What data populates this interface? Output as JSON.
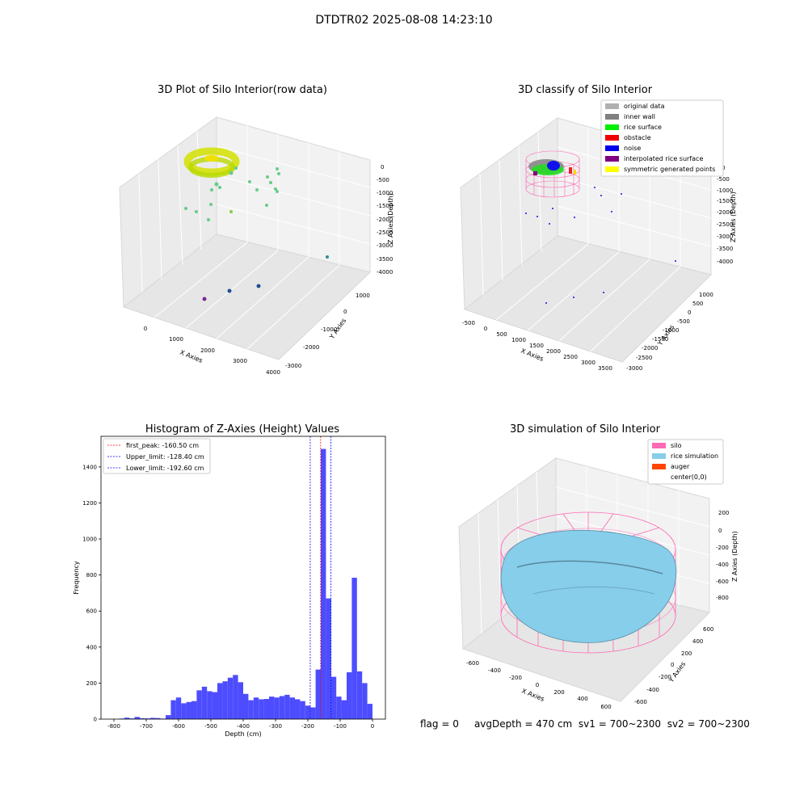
{
  "suptitle": "DTDTR02 2025-08-08 14:23:10",
  "panels": {
    "raw": {
      "title": "3D Plot of Silo Interior(row data)",
      "xlabel": "X Axies",
      "ylabel": "Y Axies",
      "zlabel": "Z Axies (Depth)",
      "xticks": [
        "0",
        "1000",
        "2000",
        "3000",
        "4000"
      ],
      "yticks": [
        "1000",
        "0",
        "-1000",
        "-2000",
        "-3000"
      ],
      "zticks": [
        "0",
        "-500",
        "-1000",
        "-1500",
        "-2000",
        "-2500",
        "-3000",
        "-3500",
        "-4000"
      ]
    },
    "classify": {
      "title": "3D classify of Silo Interior",
      "xlabel": "X Axies",
      "ylabel": "Y Axies",
      "zlabel": "Z Axies (Depth)",
      "xticks": [
        "-500",
        "0",
        "500",
        "1000",
        "1500",
        "2000",
        "2500",
        "3000",
        "3500"
      ],
      "yticks": [
        "1000",
        "500",
        "0",
        "-500",
        "-1000",
        "-1500",
        "-2000",
        "-2500",
        "-3000"
      ],
      "zticks": [
        "0",
        "-500",
        "-1000",
        "-1500",
        "-2000",
        "-2500",
        "-3000",
        "-3500",
        "-4000"
      ],
      "legend": [
        {
          "label": "original data",
          "color": "#b0b0b0"
        },
        {
          "label": "inner wall",
          "color": "#808080"
        },
        {
          "label": "rice surface",
          "color": "#00ee00"
        },
        {
          "label": "obstacle",
          "color": "#ee0000"
        },
        {
          "label": "noise",
          "color": "#0000ee"
        },
        {
          "label": "interpolated rice surface",
          "color": "#800080"
        },
        {
          "label": "symmetric generated points",
          "color": "#ffff00"
        }
      ]
    },
    "simulation": {
      "title": "3D simulation of Silo Interior",
      "xlabel": "X Axies",
      "ylabel": "Y Axies",
      "zlabel": "Z Axies (Depth)",
      "xticks": [
        "-600",
        "-400",
        "-200",
        "0",
        "200",
        "400",
        "600"
      ],
      "yticks": [
        "600",
        "400",
        "200",
        "0",
        "-200",
        "-400",
        "-600"
      ],
      "zticks": [
        "200",
        "0",
        "-200",
        "-400",
        "-600",
        "-800"
      ],
      "legend": [
        {
          "label": "silo",
          "color": "#ff69b4"
        },
        {
          "label": "rice simulation",
          "color": "#87ceeb"
        },
        {
          "label": "auger",
          "color": "#ff4500"
        },
        {
          "label": "center(0,0)",
          "color": ""
        }
      ]
    }
  },
  "histogram": {
    "title": "Histogram of Z-Axies (Height) Values",
    "legend": [
      {
        "label": "first_peak: -160.50 cm",
        "color": "#ff0000"
      },
      {
        "label": "Upper_limit: -128.40 cm",
        "color": "#0000ff"
      },
      {
        "label": "Lower_limit: -192.60 cm",
        "color": "#0000ff"
      }
    ]
  },
  "chart_data": {
    "type": "bar",
    "title": "Histogram of Z-Axies (Height) Values",
    "xlabel": "Depth (cm)",
    "ylabel": "Frequency",
    "xlim": [
      -840,
      40
    ],
    "ylim": [
      0,
      1570
    ],
    "xticks": [
      -800,
      -700,
      -600,
      -500,
      -400,
      -300,
      -200,
      -100,
      0
    ],
    "yticks": [
      0,
      200,
      400,
      600,
      800,
      1000,
      1200,
      1400
    ],
    "bin_width": 16,
    "bins_start": [
      -784,
      -768,
      -752,
      -736,
      -720,
      -704,
      -688,
      -672,
      -656,
      -640,
      -624,
      -608,
      -592,
      -576,
      -560,
      -544,
      -528,
      -512,
      -496,
      -480,
      -464,
      -448,
      -432,
      -416,
      -400,
      -384,
      -368,
      -352,
      -336,
      -320,
      -304,
      -288,
      -272,
      -256,
      -240,
      -224,
      -208,
      -192,
      -176,
      -160,
      -144,
      -128,
      -112,
      -96,
      -80,
      -64,
      -48,
      -32,
      -16
    ],
    "values": [
      3,
      8,
      4,
      12,
      5,
      4,
      7,
      6,
      3,
      22,
      105,
      120,
      88,
      95,
      100,
      160,
      180,
      155,
      150,
      200,
      210,
      230,
      245,
      205,
      140,
      105,
      120,
      110,
      112,
      125,
      120,
      128,
      135,
      120,
      110,
      100,
      75,
      65,
      275,
      1500,
      670,
      235,
      125,
      105,
      260,
      785,
      265,
      200,
      85
    ],
    "vlines": [
      {
        "name": "first_peak",
        "x": -160.5,
        "color": "#ff0000"
      },
      {
        "name": "Upper_limit",
        "x": -128.4,
        "color": "#0000ff"
      },
      {
        "name": "Lower_limit",
        "x": -192.6,
        "color": "#0000ff"
      }
    ]
  },
  "status": {
    "flag": "flag = 0",
    "avg": "avgDepth = 470 cm",
    "sv1": "sv1 = 700~2300",
    "sv2": "sv2 = 700~2300"
  }
}
